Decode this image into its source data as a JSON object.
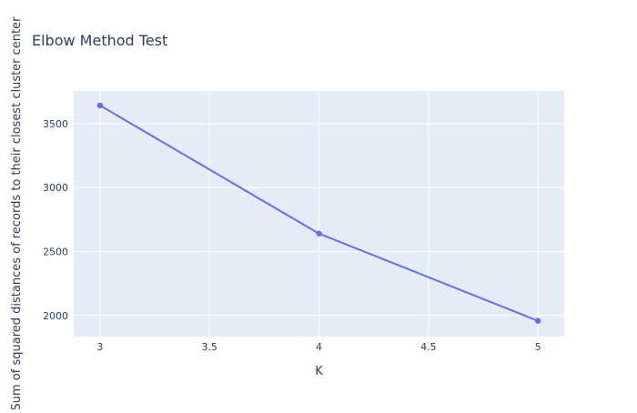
{
  "chart_data": {
    "type": "line",
    "title": "Elbow Method Test",
    "xlabel": "K",
    "ylabel": "Sum of squared distances of records to their closest cluster center",
    "x": [
      3,
      4,
      5
    ],
    "series": [
      {
        "values": [
          3642,
          2640,
          1958
        ]
      }
    ],
    "xlim": [
      2.88,
      5.12
    ],
    "ylim": [
      1835,
      3755
    ],
    "xticks": [
      3,
      3.5,
      4,
      4.5,
      5
    ],
    "xtick_labels": [
      "3",
      "3.5",
      "4",
      "4.5",
      "5"
    ],
    "yticks": [
      2000,
      2500,
      3000,
      3500
    ],
    "ytick_labels": [
      "2000",
      "2500",
      "3000",
      "3500"
    ],
    "grid": true,
    "markers": true,
    "colors": {
      "plot_background": "#e5ecf6",
      "grid": "#ffffff",
      "line": "#636efa",
      "title_text": "#2a3f5f",
      "tick_text": "#2a3f5f"
    }
  }
}
